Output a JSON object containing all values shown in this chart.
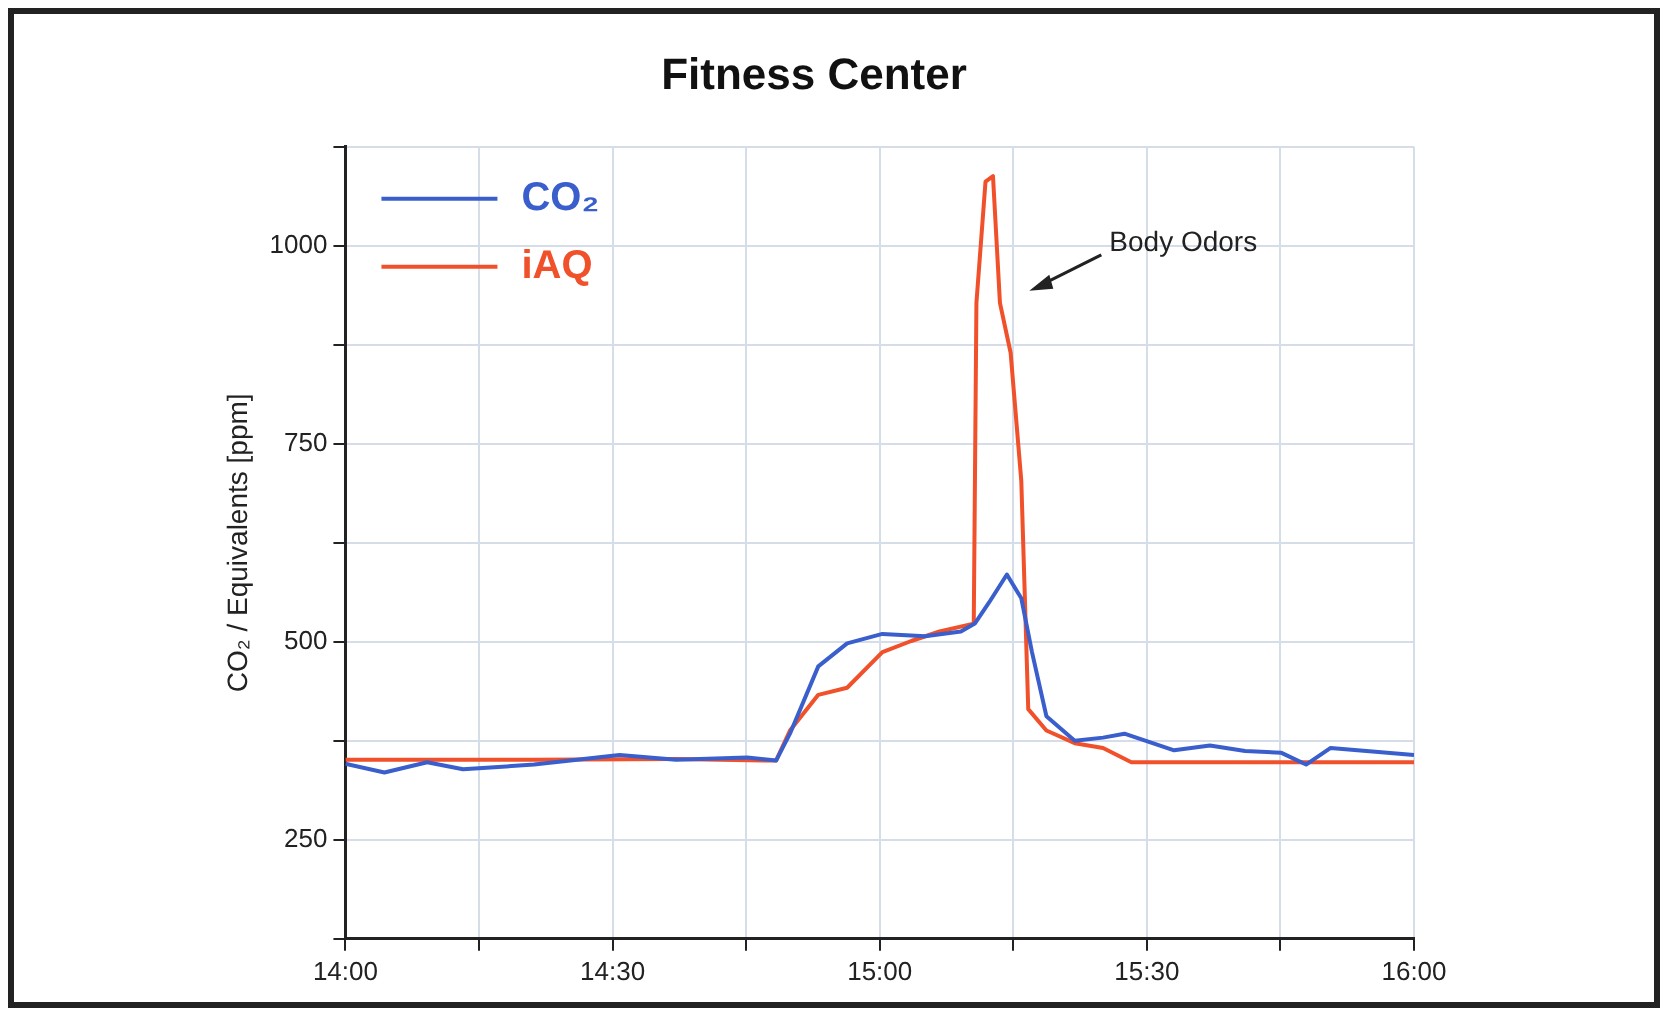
{
  "chart_data": {
    "type": "line",
    "title": "Fitness Center",
    "ylabel": "CO₂ / Equivalents [ppm]",
    "xlim": [
      14,
      16
    ],
    "xticks": [
      {
        "value": 14,
        "label": "14:00"
      },
      {
        "value": 14.25,
        "label": null
      },
      {
        "value": 14.5,
        "label": "14:30"
      },
      {
        "value": 14.75,
        "label": null
      },
      {
        "value": 15,
        "label": "15:00"
      },
      {
        "value": 15.25,
        "label": null
      },
      {
        "value": 15.5,
        "label": "15:30"
      },
      {
        "value": 15.75,
        "label": null
      },
      {
        "value": 16,
        "label": "16:00"
      }
    ],
    "ylim": [
      125,
      1125
    ],
    "yticks": [
      {
        "value": 125,
        "label": null
      },
      {
        "value": 250,
        "label": "250"
      },
      {
        "value": 375,
        "label": null
      },
      {
        "value": 500,
        "label": "500"
      },
      {
        "value": 625,
        "label": null
      },
      {
        "value": 750,
        "label": "750"
      },
      {
        "value": 875,
        "label": null
      },
      {
        "value": 1000,
        "label": "1000"
      },
      {
        "value": 1125,
        "label": null
      }
    ],
    "grid": true,
    "legend": "top left",
    "marker": "none",
    "line_style": "solid",
    "annotations": [
      "Body Odors"
    ],
    "series": [
      {
        "name": "CO₂",
        "color": "#3a5fcd",
        "x": [
          14.0,
          14.073,
          14.153,
          14.22,
          14.353,
          14.513,
          14.619,
          14.752,
          14.806,
          14.832,
          14.885,
          14.939,
          15.005,
          15.085,
          15.152,
          15.178,
          15.205,
          15.238,
          15.265,
          15.285,
          15.312,
          15.365,
          15.418,
          15.458,
          15.551,
          15.618,
          15.684,
          15.751,
          15.798,
          15.844,
          15.911,
          16.0
        ],
        "values": [
          346,
          335,
          348,
          339,
          345,
          357,
          351,
          354,
          350,
          384,
          469,
          498,
          510,
          507,
          513,
          523,
          550,
          585,
          555,
          487,
          406,
          375,
          379,
          384,
          363,
          369,
          362,
          360,
          345,
          366,
          362,
          357
        ]
      },
      {
        "name": "iAQ",
        "color": "#f0502a",
        "x": [
          14.0,
          14.353,
          14.619,
          14.806,
          14.832,
          14.885,
          14.939,
          15.005,
          15.059,
          15.112,
          15.176,
          15.181,
          15.198,
          15.212,
          15.225,
          15.245,
          15.265,
          15.278,
          15.312,
          15.365,
          15.418,
          15.471,
          15.551,
          16.0
        ],
        "values": [
          351,
          351,
          352,
          350,
          388,
          433,
          442,
          487,
          501,
          513,
          523,
          928,
          1081,
          1088,
          928,
          865,
          703,
          415,
          388,
          372,
          366,
          348,
          348,
          348
        ]
      }
    ]
  }
}
